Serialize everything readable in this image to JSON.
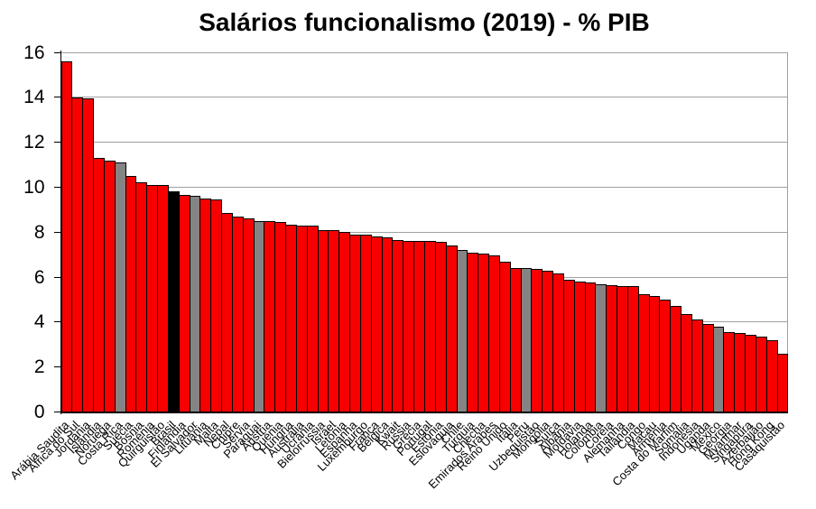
{
  "chart_data": {
    "type": "bar",
    "title": "Salários funcionalismo (2019) - % PIB",
    "xlabel": "",
    "ylabel": "",
    "ylim": [
      0,
      16
    ],
    "yticks": [
      0,
      2,
      4,
      6,
      8,
      10,
      12,
      14,
      16
    ],
    "grid": true,
    "legend": false,
    "categories": [
      "Arábia Saudita",
      "África do Sul",
      "Jordânia",
      "Islândia",
      "Noruega",
      "Costa Rica",
      "Suécia",
      "Bósnia",
      "Romênia",
      "Quirguistão",
      "Brasil",
      "Finlândia",
      "El Salvador",
      "Lituânia",
      "Malta",
      "Nepal",
      "Chipre",
      "Sérvia",
      "Paraguai",
      "Áustria",
      "Quênia",
      "Hungria",
      "Austrália",
      "Ucrânia",
      "Bielorrússia",
      "Israel",
      "Letônia",
      "Espanha",
      "Luxemburgo",
      "França",
      "Bélgica",
      "Kwait",
      "Rússia",
      "Grécia",
      "Portugal",
      "Estônia",
      "Eslováquia",
      "Chile",
      "Turquia",
      "Checha",
      "Emirados Árabes",
      "Reino Unido",
      "Itália",
      "Peru",
      "Uzbequistão",
      "Mongólia",
      "Suíça",
      "Albânia",
      "Moldávia",
      "Holanda",
      "Colômbia",
      "Coreia",
      "Alemanha",
      "Tailândia",
      "Congo",
      "Macau",
      "Armênia",
      "Costa do Marfim",
      "Somália",
      "Indonésia",
      "Uganda",
      "México",
      "Geórgia",
      "Myanmar",
      "Singapura",
      "Azerbaijão",
      "Hong Kong",
      "Casaquistão"
    ],
    "values": [
      15.6,
      14.0,
      13.95,
      11.3,
      11.2,
      11.1,
      10.5,
      10.2,
      10.1,
      10.1,
      9.8,
      9.65,
      9.6,
      9.5,
      9.45,
      8.85,
      8.7,
      8.6,
      8.5,
      8.5,
      8.45,
      8.35,
      8.3,
      8.3,
      8.1,
      8.1,
      8.0,
      7.9,
      7.9,
      7.8,
      7.75,
      7.65,
      7.6,
      7.6,
      7.6,
      7.55,
      7.4,
      7.2,
      7.1,
      7.05,
      6.95,
      6.7,
      6.4,
      6.4,
      6.35,
      6.3,
      6.15,
      5.9,
      5.8,
      5.75,
      5.7,
      5.65,
      5.6,
      5.6,
      5.25,
      5.15,
      5.0,
      4.7,
      4.35,
      4.1,
      3.9,
      3.8,
      3.55,
      3.5,
      3.45,
      3.35,
      3.2,
      2.6
    ],
    "bar_colors": [
      "red",
      "red",
      "red",
      "red",
      "red",
      "gray",
      "red",
      "red",
      "red",
      "red",
      "black",
      "red",
      "gray",
      "red",
      "red",
      "red",
      "red",
      "red",
      "gray",
      "red",
      "red",
      "red",
      "red",
      "red",
      "red",
      "red",
      "red",
      "red",
      "red",
      "red",
      "red",
      "red",
      "red",
      "red",
      "red",
      "red",
      "red",
      "gray",
      "red",
      "red",
      "red",
      "red",
      "red",
      "gray",
      "red",
      "red",
      "red",
      "red",
      "red",
      "red",
      "gray",
      "red",
      "red",
      "red",
      "red",
      "red",
      "red",
      "red",
      "red",
      "red",
      "red",
      "gray",
      "red",
      "red",
      "red",
      "red",
      "red",
      "red"
    ],
    "colors": {
      "red": "#f80000",
      "gray": "#848484",
      "black": "#000000",
      "gridline": "#a0a0a0",
      "axis": "#000000",
      "bar_border": "#000000"
    },
    "highlight_black": "Brasil",
    "highlight_gray": [
      "Costa Rica",
      "El Salvador",
      "Paraguai",
      "Chile",
      "Peru",
      "Colômbia",
      "México"
    ]
  }
}
